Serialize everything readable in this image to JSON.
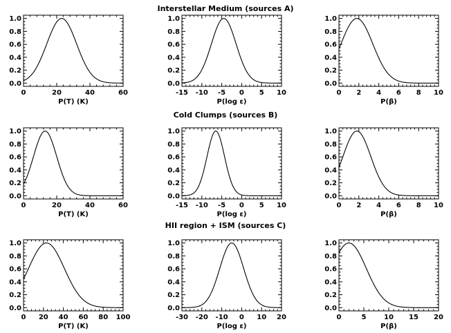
{
  "chart_data": [
    {
      "type": "line",
      "row_title": "Interstellar Medium (sources A)",
      "xlabel": "P(T) (K)",
      "xlim": [
        0,
        60
      ],
      "ylim": [
        0,
        1.0
      ],
      "xticks": [
        0,
        20,
        40,
        60
      ],
      "yticks": [
        0.0,
        0.2,
        0.4,
        0.6,
        0.8,
        1.0
      ],
      "curve": {
        "shape": "gaussian",
        "peak_x": 23,
        "sigma": 9.0
      }
    },
    {
      "type": "line",
      "xlabel": "P(log ε)",
      "xlim": [
        -15,
        10
      ],
      "ylim": [
        0,
        1.0
      ],
      "xticks": [
        -15,
        -10,
        -5,
        0,
        5,
        10
      ],
      "yticks": [
        0.0,
        0.2,
        0.4,
        0.6,
        0.8,
        1.0
      ],
      "curve": {
        "shape": "gaussian",
        "peak_x": -4.5,
        "sigma": 3.1
      }
    },
    {
      "type": "line",
      "xlabel": "P(β)",
      "xlim": [
        0,
        10
      ],
      "ylim": [
        0,
        1.0
      ],
      "xticks": [
        0,
        2,
        4,
        6,
        8,
        10
      ],
      "yticks": [
        0.0,
        0.2,
        0.4,
        0.6,
        0.8,
        1.0
      ],
      "curve": {
        "shape": "gaussian",
        "peak_x": 1.8,
        "sigma": 1.6
      }
    },
    {
      "type": "line",
      "row_title": "Cold Clumps (sources B)",
      "xlabel": "P(T) (K)",
      "xlim": [
        0,
        60
      ],
      "ylim": [
        0,
        1.0
      ],
      "xticks": [
        0,
        20,
        40,
        60
      ],
      "yticks": [
        0.0,
        0.2,
        0.4,
        0.6,
        0.8,
        1.0
      ],
      "curve": {
        "shape": "gaussian",
        "peak_x": 13,
        "sigma": 7.0
      }
    },
    {
      "type": "line",
      "xlabel": "P(log ε)",
      "xlim": [
        -15,
        10
      ],
      "ylim": [
        0,
        1.0
      ],
      "xticks": [
        -15,
        -10,
        -5,
        0,
        5,
        10
      ],
      "yticks": [
        0.0,
        0.2,
        0.4,
        0.6,
        0.8,
        1.0
      ],
      "curve": {
        "shape": "gaussian",
        "peak_x": -6.5,
        "sigma": 2.2
      }
    },
    {
      "type": "line",
      "xlabel": "P(β)",
      "xlim": [
        0,
        10
      ],
      "ylim": [
        0,
        1.0
      ],
      "xticks": [
        0,
        2,
        4,
        6,
        8,
        10
      ],
      "yticks": [
        0.0,
        0.2,
        0.4,
        0.6,
        0.8,
        1.0
      ],
      "curve": {
        "shape": "gaussian",
        "peak_x": 1.8,
        "sigma": 1.4
      }
    },
    {
      "type": "line",
      "row_title": "HII region + ISM (sources C)",
      "xlabel": "P(T) (K)",
      "xlim": [
        0,
        100
      ],
      "ylim": [
        0,
        1.0
      ],
      "xticks": [
        0,
        20,
        40,
        60,
        80,
        100
      ],
      "yticks": [
        0.0,
        0.2,
        0.4,
        0.6,
        0.8,
        1.0
      ],
      "curve": {
        "shape": "gaussian",
        "peak_x": 23,
        "sigma": 18.0
      }
    },
    {
      "type": "line",
      "xlabel": "P(log ε)",
      "xlim": [
        -30,
        20
      ],
      "ylim": [
        0,
        1.0
      ],
      "xticks": [
        -30,
        -20,
        -10,
        0,
        10,
        20
      ],
      "yticks": [
        0.0,
        0.2,
        0.4,
        0.6,
        0.8,
        1.0
      ],
      "curve": {
        "shape": "gaussian",
        "peak_x": -5,
        "sigma": 6.0
      }
    },
    {
      "type": "line",
      "xlabel": "P(β)",
      "xlim": [
        0,
        20
      ],
      "ylim": [
        0,
        1.0
      ],
      "xticks": [
        0,
        5,
        10,
        15,
        20
      ],
      "yticks": [
        0.0,
        0.2,
        0.4,
        0.6,
        0.8,
        1.0
      ],
      "curve": {
        "shape": "gaussian",
        "peak_x": 2,
        "sigma": 3.5
      }
    }
  ]
}
